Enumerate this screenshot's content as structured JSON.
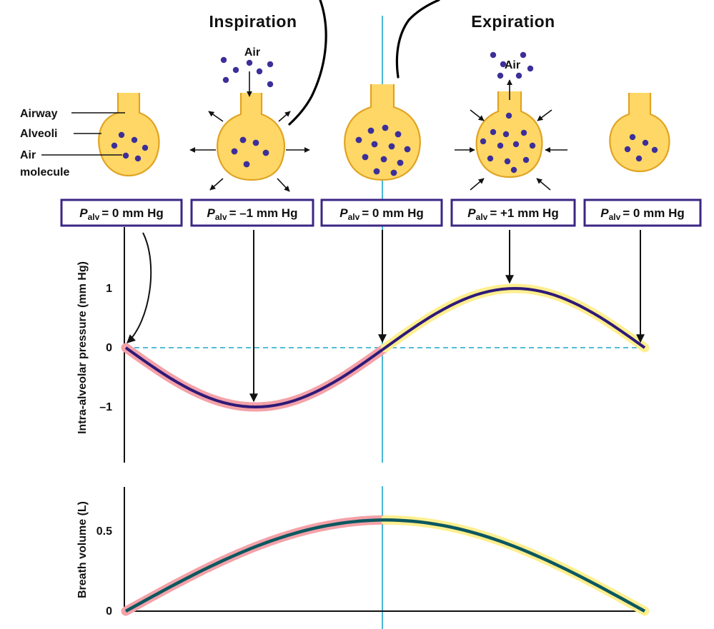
{
  "titles": {
    "inspiration": "Inspiration",
    "expiration": "Expiration"
  },
  "labels": {
    "airway": "Airway",
    "alveoli": "Alveoli",
    "air_molecule_line1": "Air",
    "air_molecule_line2": "molecule",
    "air_in": "Air",
    "air_out": "Air"
  },
  "pressure_boxes": [
    {
      "symbol": "P",
      "subscript": "alv",
      "value": "= 0 mm Hg"
    },
    {
      "symbol": "P",
      "subscript": "alv",
      "value": "= –1 mm Hg"
    },
    {
      "symbol": "P",
      "subscript": "alv",
      "value": "= 0 mm Hg"
    },
    {
      "symbol": "P",
      "subscript": "alv",
      "value": "= +1 mm Hg"
    },
    {
      "symbol": "P",
      "subscript": "alv",
      "value": "= 0 mm Hg"
    }
  ],
  "colors": {
    "inspiration_highlight": "#f4a1a8",
    "expiration_highlight": "#ffef8f",
    "pressure_line": "#2e1a78",
    "volume_line": "#0b5860",
    "divider": "#1aa7c9",
    "alveolus_fill": "#ffd766",
    "molecule": "#3c2f9a",
    "box_border": "#3b2683"
  },
  "chart_data": [
    {
      "type": "line",
      "ylabel": "Intra-alveolar pressure (mm Hg)",
      "yticks": [
        "1",
        "0",
        "–1"
      ],
      "ylim": [
        -2,
        2
      ],
      "x": [
        0,
        1,
        2,
        3,
        4
      ],
      "series": [
        {
          "values": [
            0,
            -1,
            0,
            1,
            0
          ]
        }
      ],
      "reference_line": {
        "y": 0,
        "style": "dashed"
      },
      "phases": [
        "inspiration",
        "expiration"
      ]
    },
    {
      "type": "line",
      "ylabel": "Breath volume (L)",
      "yticks": [
        "0.5",
        "0"
      ],
      "ylim": [
        0,
        0.7
      ],
      "x": [
        0,
        1,
        2,
        3,
        4
      ],
      "series": [
        {
          "values": [
            0,
            0.42,
            0.57,
            0.42,
            0
          ]
        }
      ],
      "phases": [
        "inspiration",
        "expiration"
      ]
    }
  ]
}
